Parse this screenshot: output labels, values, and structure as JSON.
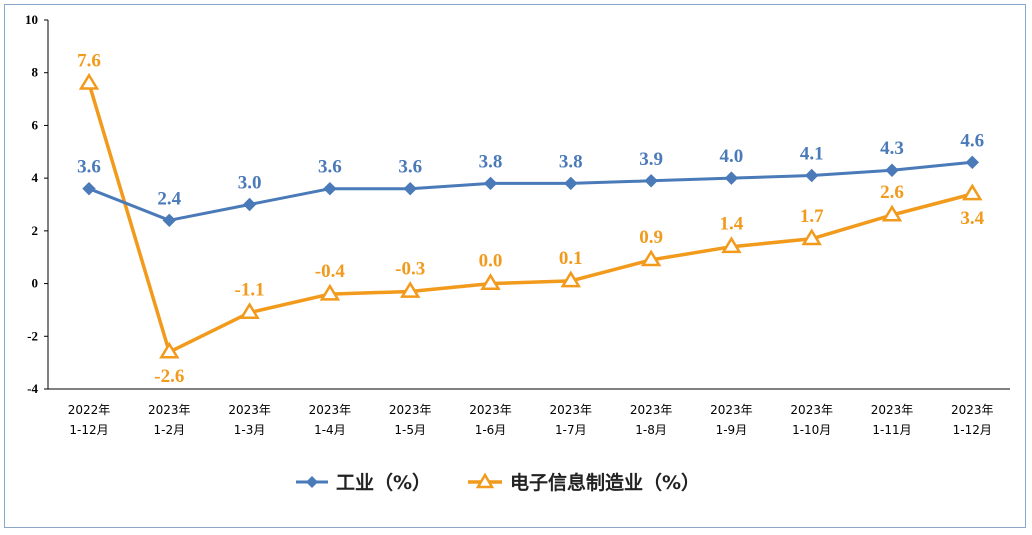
{
  "chart_data": {
    "type": "line",
    "title": "",
    "xlabel": "",
    "ylabel": "",
    "ylim": [
      -4,
      10
    ],
    "yticks": [
      "10",
      "8",
      "6",
      "4",
      "2",
      "0",
      "-2",
      "-4"
    ],
    "categories": [
      [
        "2022年",
        "1-12月"
      ],
      [
        "2023年",
        "1-2月"
      ],
      [
        "2023年",
        "1-3月"
      ],
      [
        "2023年",
        "1-4月"
      ],
      [
        "2023年",
        "1-5月"
      ],
      [
        "2023年",
        "1-6月"
      ],
      [
        "2023年",
        "1-7月"
      ],
      [
        "2023年",
        "1-8月"
      ],
      [
        "2023年",
        "1-9月"
      ],
      [
        "2023年",
        "1-10月"
      ],
      [
        "2023年",
        "1-11月"
      ],
      [
        "2023年",
        "1-12月"
      ]
    ],
    "series": [
      {
        "name": "工业（%）",
        "color": "#4a7ab8",
        "marker": "diamond",
        "values": [
          3.6,
          2.4,
          3.0,
          3.6,
          3.6,
          3.8,
          3.8,
          3.9,
          4.0,
          4.1,
          4.3,
          4.6
        ],
        "labels": [
          "3.6",
          "2.4",
          "3.0",
          "3.6",
          "3.6",
          "3.8",
          "3.8",
          "3.9",
          "4.0",
          "4.1",
          "4.3",
          "4.6"
        ]
      },
      {
        "name": "电子信息制造业（%）",
        "color": "#f29a1c",
        "marker": "triangle",
        "values": [
          7.6,
          -2.6,
          -1.1,
          -0.4,
          -0.3,
          0.0,
          0.1,
          0.9,
          1.4,
          1.7,
          2.6,
          3.4
        ],
        "labels": [
          "7.6",
          "-2.6",
          "-1.1",
          "-0.4",
          "-0.3",
          "0.0",
          "0.1",
          "0.9",
          "1.4",
          "1.7",
          "2.6",
          "3.4"
        ]
      }
    ],
    "legend_position": "bottom-center",
    "grid": false
  }
}
